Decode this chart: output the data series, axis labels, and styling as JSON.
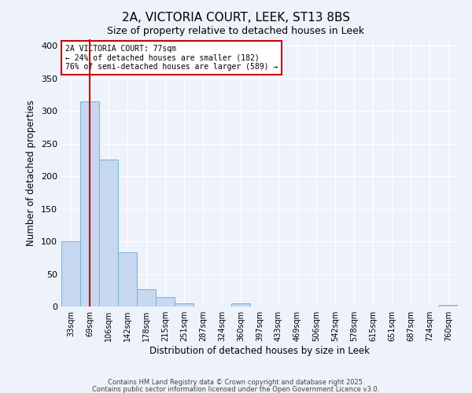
{
  "title": "2A, VICTORIA COURT, LEEK, ST13 8BS",
  "subtitle": "Size of property relative to detached houses in Leek",
  "xlabel": "Distribution of detached houses by size in Leek",
  "ylabel": "Number of detached properties",
  "bin_labels": [
    "33sqm",
    "69sqm",
    "106sqm",
    "142sqm",
    "178sqm",
    "215sqm",
    "251sqm",
    "287sqm",
    "324sqm",
    "360sqm",
    "397sqm",
    "433sqm",
    "469sqm",
    "506sqm",
    "542sqm",
    "578sqm",
    "615sqm",
    "651sqm",
    "687sqm",
    "724sqm",
    "760sqm"
  ],
  "bar_values": [
    100,
    315,
    225,
    83,
    27,
    14,
    5,
    0,
    0,
    5,
    0,
    0,
    0,
    0,
    0,
    0,
    0,
    0,
    0,
    0,
    2
  ],
  "bar_color": "#c5d8ef",
  "bar_edge_color": "#7aafd4",
  "vline_x": 1,
  "vline_color": "#cc0000",
  "annotation_box_text": "2A VICTORIA COURT: 77sqm\n← 24% of detached houses are smaller (182)\n76% of semi-detached houses are larger (589) →",
  "annotation_box_facecolor": "#ffffff",
  "annotation_box_edgecolor": "#cc0000",
  "ylim": [
    0,
    410
  ],
  "yticks": [
    0,
    50,
    100,
    150,
    200,
    250,
    300,
    350,
    400
  ],
  "background_color": "#eef2fa",
  "grid_color": "#ffffff",
  "footer_line1": "Contains HM Land Registry data © Crown copyright and database right 2025.",
  "footer_line2": "Contains public sector information licensed under the Open Government Licence v3.0."
}
